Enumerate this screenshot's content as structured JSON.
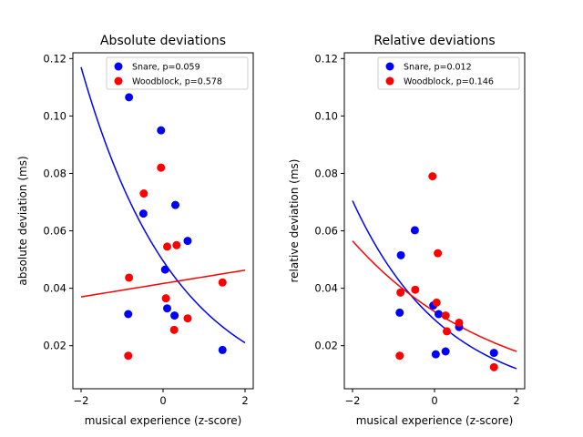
{
  "chart_data": [
    {
      "type": "scatter",
      "title": "Absolute deviations",
      "xlabel": "musical experience (z-score)",
      "ylabel": "absolute deviation (ms)",
      "xlim": [
        -2.2,
        2.2
      ],
      "ylim": [
        0.005,
        0.122
      ],
      "xticks": [
        -2,
        0,
        2
      ],
      "xtick_labels": [
        "−2",
        "0",
        "2"
      ],
      "yticks": [
        0.02,
        0.04,
        0.06,
        0.08,
        0.1,
        0.12
      ],
      "ytick_labels": [
        "0.02",
        "0.04",
        "0.06",
        "0.08",
        "0.10",
        "0.12"
      ],
      "legend_position": "top-right",
      "grid": false,
      "series": [
        {
          "name": "Snare, p=0.059",
          "color": "#0000ff",
          "points": [
            {
              "x": -0.83,
              "y": 0.1065
            },
            {
              "x": -0.05,
              "y": 0.095
            },
            {
              "x": 0.3,
              "y": 0.069
            },
            {
              "x": -0.48,
              "y": 0.066
            },
            {
              "x": 0.6,
              "y": 0.0565
            },
            {
              "x": 0.05,
              "y": 0.0465
            },
            {
              "x": 0.1,
              "y": 0.033
            },
            {
              "x": -0.85,
              "y": 0.031
            },
            {
              "x": 0.28,
              "y": 0.0305
            },
            {
              "x": 1.45,
              "y": 0.0185
            }
          ],
          "fit": {
            "model": "exponential",
            "x": [
              -2,
              2
            ],
            "y": [
              0.117,
              0.021
            ]
          }
        },
        {
          "name": "Woodblock, p=0.578",
          "color": "#ff0000",
          "points": [
            {
              "x": -0.05,
              "y": 0.082
            },
            {
              "x": -0.47,
              "y": 0.073
            },
            {
              "x": 0.1,
              "y": 0.0545
            },
            {
              "x": 0.33,
              "y": 0.055
            },
            {
              "x": -0.83,
              "y": 0.0437
            },
            {
              "x": 1.45,
              "y": 0.042
            },
            {
              "x": 0.07,
              "y": 0.0365
            },
            {
              "x": 0.6,
              "y": 0.0295
            },
            {
              "x": 0.27,
              "y": 0.0255
            },
            {
              "x": -0.85,
              "y": 0.0165
            }
          ],
          "fit": {
            "model": "linear",
            "x": [
              -2,
              2
            ],
            "y": [
              0.037,
              0.0463
            ]
          }
        }
      ]
    },
    {
      "type": "scatter",
      "title": "Relative deviations",
      "xlabel": "musical experience (z-score)",
      "ylabel": "relative deviation (ms)",
      "xlim": [
        -2.2,
        2.2
      ],
      "ylim": [
        0.005,
        0.122
      ],
      "xticks": [
        -2,
        0,
        2
      ],
      "xtick_labels": [
        "−2",
        "0",
        "2"
      ],
      "yticks": [
        0.02,
        0.04,
        0.06,
        0.08,
        0.1,
        0.12
      ],
      "ytick_labels": [
        "0.02",
        "0.04",
        "0.06",
        "0.08",
        "0.10",
        "0.12"
      ],
      "legend_position": "top-right",
      "grid": false,
      "series": [
        {
          "name": "Snare, p=0.012",
          "color": "#0000ff",
          "points": [
            {
              "x": -0.48,
              "y": 0.0602
            },
            {
              "x": -0.82,
              "y": 0.0515
            },
            {
              "x": -0.03,
              "y": 0.034
            },
            {
              "x": -0.85,
              "y": 0.0315
            },
            {
              "x": 0.1,
              "y": 0.031
            },
            {
              "x": 0.6,
              "y": 0.0265
            },
            {
              "x": 0.27,
              "y": 0.018
            },
            {
              "x": 0.03,
              "y": 0.017
            },
            {
              "x": 1.45,
              "y": 0.0175
            }
          ],
          "fit": {
            "model": "exponential",
            "x": [
              -2,
              2
            ],
            "y": [
              0.0705,
              0.012
            ]
          }
        },
        {
          "name": "Woodblock, p=0.146",
          "color": "#ff0000",
          "points": [
            {
              "x": -0.05,
              "y": 0.079
            },
            {
              "x": 0.08,
              "y": 0.0522
            },
            {
              "x": -0.47,
              "y": 0.0395
            },
            {
              "x": -0.83,
              "y": 0.0385
            },
            {
              "x": 0.05,
              "y": 0.035
            },
            {
              "x": 0.27,
              "y": 0.0305
            },
            {
              "x": 0.6,
              "y": 0.028
            },
            {
              "x": 0.3,
              "y": 0.025
            },
            {
              "x": -0.85,
              "y": 0.0165
            },
            {
              "x": 1.45,
              "y": 0.0125
            }
          ],
          "fit": {
            "model": "exponential",
            "x": [
              -2,
              2
            ],
            "y": [
              0.0565,
              0.018
            ]
          }
        }
      ]
    }
  ]
}
